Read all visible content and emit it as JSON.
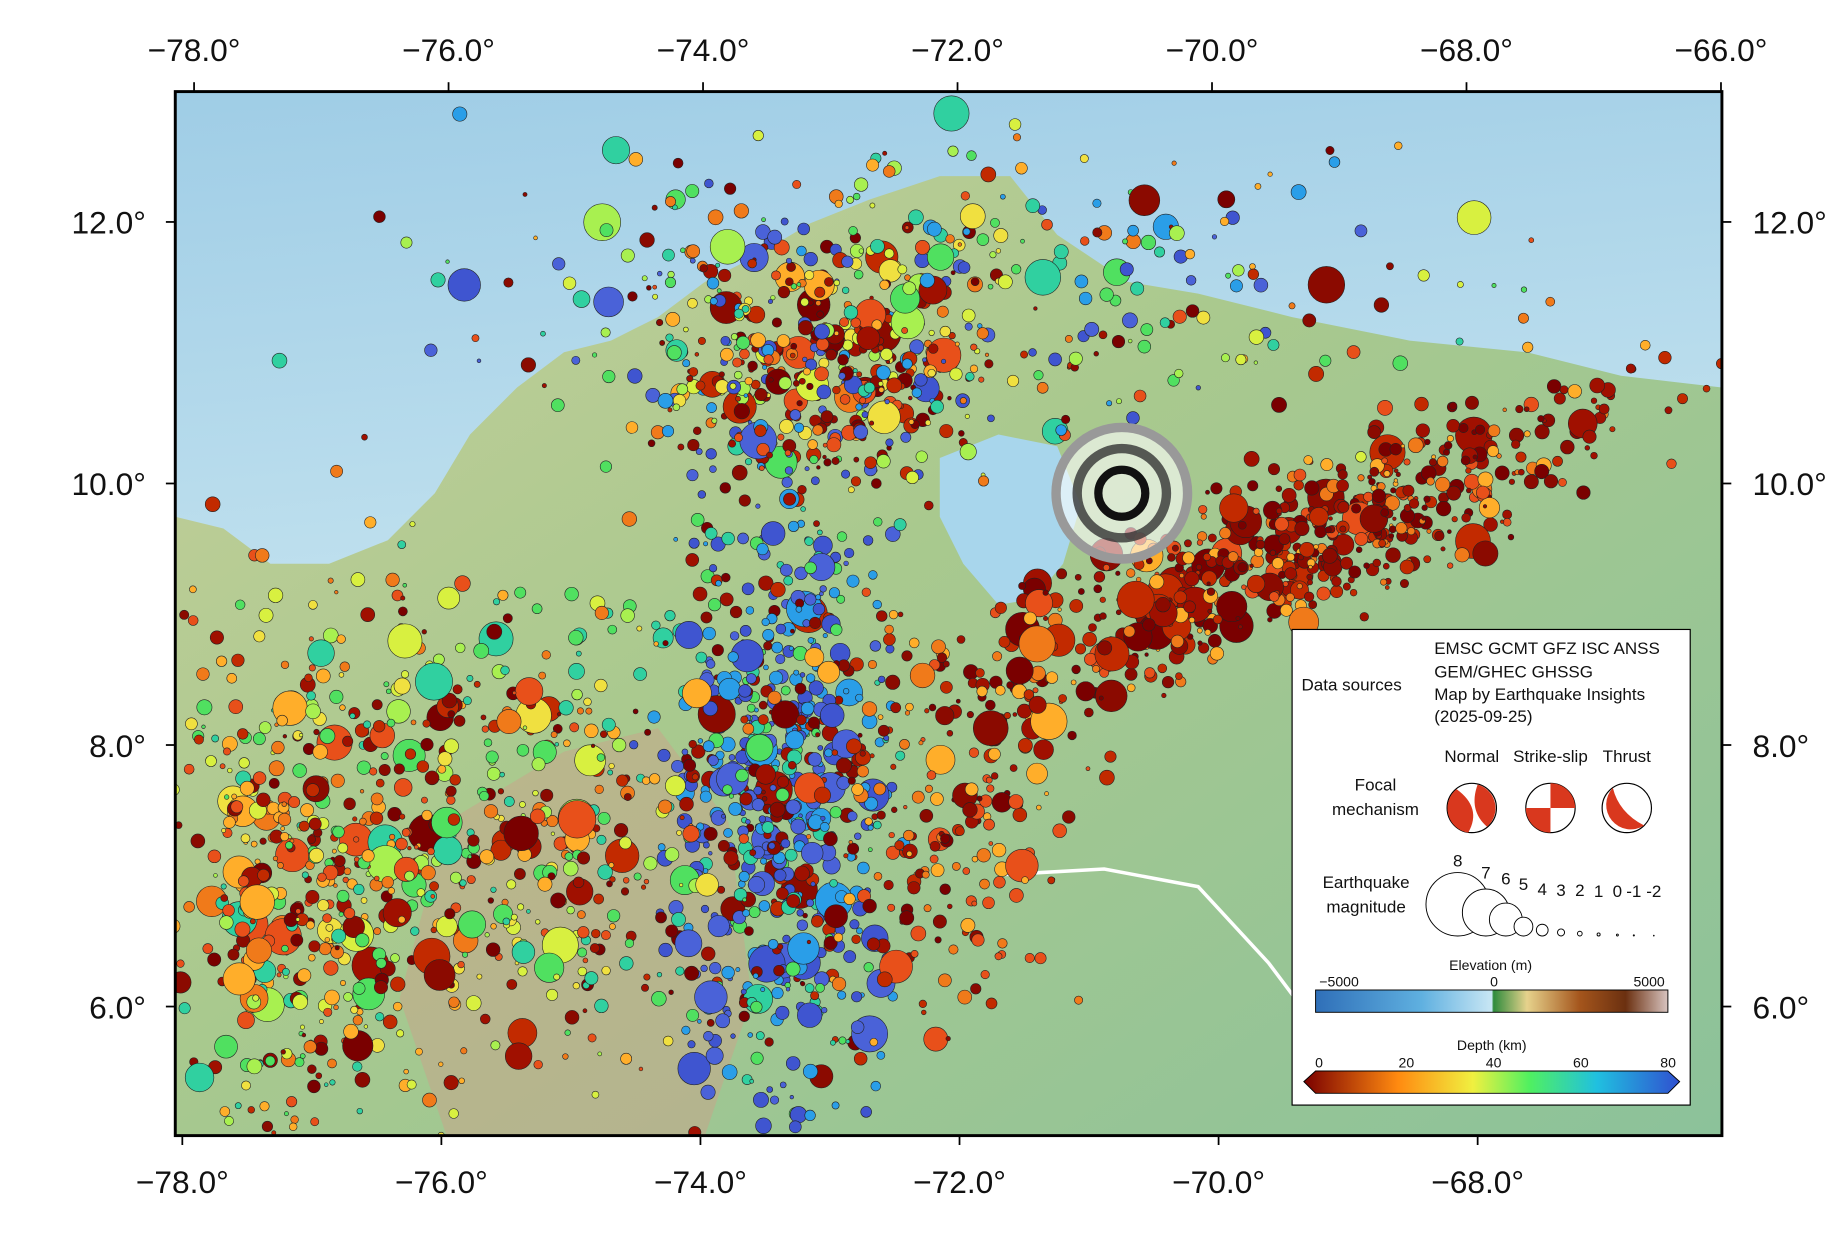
{
  "map": {
    "top_axis_labels": [
      "−78.0°",
      "−76.0°",
      "−74.0°",
      "−72.0°",
      "−70.0°",
      "−68.0°",
      "−66.0°"
    ],
    "bottom_axis_labels": [
      "−78.0°",
      "−76.0°",
      "−74.0°",
      "−72.0°",
      "−70.0°",
      "−68.0°"
    ],
    "left_axis_labels": [
      "12.0°",
      "10.0°",
      "8.0°",
      "6.0°"
    ],
    "right_axis_labels": [
      "12.0°",
      "10.0°",
      "8.0°",
      "6.0°"
    ]
  },
  "legend": {
    "data_sources_label": "Data sources",
    "data_sources_lines": [
      "EMSC GCMT GFZ ISC ANSS",
      "GEM/GHEC GHSSG",
      "Map by Earthquake Insights",
      "(2025-09-25)"
    ],
    "focal_mechanism_label": [
      "Focal",
      "mechanism"
    ],
    "mechanism_types": [
      "Normal",
      "Strike-slip",
      "Thrust"
    ],
    "magnitude_label": [
      "Earthquake",
      "magnitude"
    ],
    "magnitudes": [
      "8",
      "7",
      "6",
      "5",
      "4",
      "3",
      "2",
      "1",
      "0",
      "-1",
      "-2"
    ],
    "elevation_title": "Elevation (m)",
    "elevation_ticks": [
      "−5000",
      "0",
      "5000"
    ],
    "depth_title": "Depth (km)",
    "depth_ticks": [
      "0",
      "20",
      "40",
      "60",
      "80"
    ]
  }
}
